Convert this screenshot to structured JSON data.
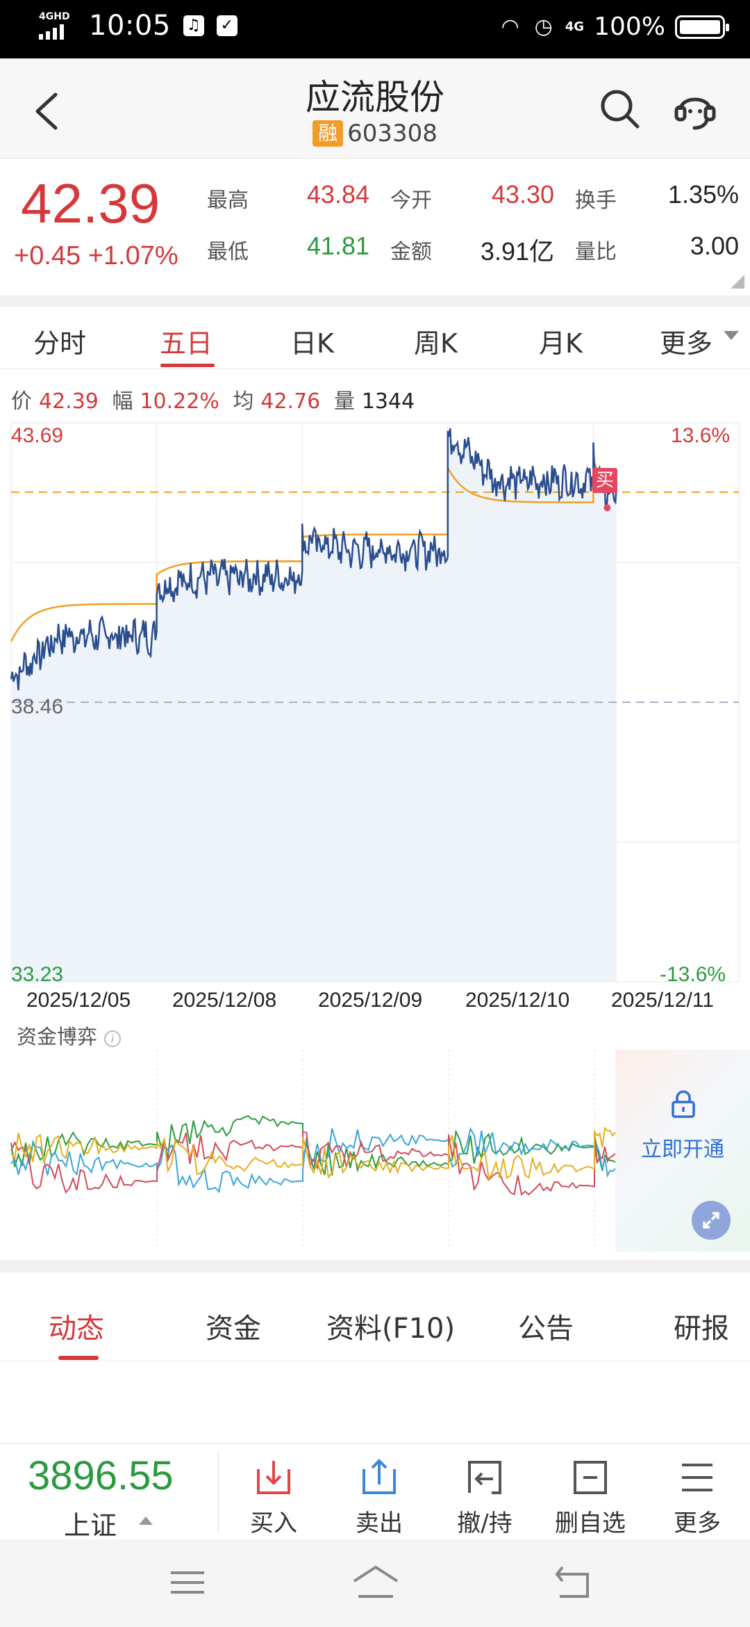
{
  "status": {
    "network": "4GHD",
    "time": "10:05",
    "battery": "100%",
    "network2": "4G"
  },
  "header": {
    "title": "应流股份",
    "badge": "融",
    "code": "603308"
  },
  "quote": {
    "price": "42.39",
    "change": "+0.45 +1.07%",
    "stats": [
      {
        "label": "最高",
        "value": "43.84"
      },
      {
        "label": "最低",
        "value": "41.81"
      },
      {
        "label": "今开",
        "value": "43.30"
      },
      {
        "label": "金额",
        "value": "3.91亿"
      },
      {
        "label": "换手",
        "value": "1.35%"
      },
      {
        "label": "量比",
        "value": "3.00"
      }
    ]
  },
  "period_tabs": [
    "分时",
    "五日",
    "日K",
    "周K",
    "月K",
    "更多"
  ],
  "info_line": {
    "price_label": "价",
    "price": "42.39",
    "range_label": "幅",
    "range": "10.22%",
    "avg_label": "均",
    "avg": "42.76",
    "vol_label": "量",
    "vol": "1344"
  },
  "chart_labels": {
    "top_left": "43.69",
    "mid_left": "38.46",
    "bottom_left": "33.23",
    "top_right": "13.6%",
    "bottom_right": "-13.6%",
    "buy_marker": "买"
  },
  "chart_data": {
    "type": "line",
    "x": [
      "2025/12/05",
      "2025/12/08",
      "2025/12/09",
      "2025/12/10",
      "2025/12/11"
    ],
    "series": [
      {
        "values": [
          39.7,
          40.8,
          41.3,
          42.6,
          42.4
        ],
        "color": "#2a4d8f"
      },
      {
        "values": [
          40.3,
          41.1,
          41.6,
          42.2,
          42.76
        ],
        "color": "#f0a020"
      }
    ],
    "ylim": [
      33.23,
      43.69
    ],
    "prev_close": 38.46,
    "pct_range": [
      "-13.6%",
      "13.6%"
    ],
    "area_fill": "#eef3f9"
  },
  "dates": [
    "2025/12/05",
    "2025/12/08",
    "2025/12/09",
    "2025/12/10",
    "2025/12/11"
  ],
  "fund_flow": {
    "title": "资金博弈",
    "unlock_label": "立即开通"
  },
  "section_tabs": [
    "动态",
    "资金",
    "资料(F10)",
    "公告",
    "研报"
  ],
  "toolbar": {
    "index_value": "3896.55",
    "index_name": "上证",
    "buttons": [
      "买入",
      "卖出",
      "撤/持",
      "删自选",
      "更多"
    ]
  }
}
